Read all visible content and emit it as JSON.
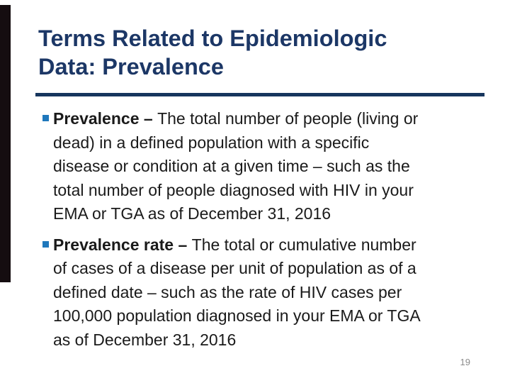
{
  "slide": {
    "title_line1": "Terms Related to Epidemiologic",
    "title_line2": "Data: Prevalence",
    "bullets": [
      {
        "bold": "Prevalence – ",
        "lines": [
          "The total number of people (living or",
          "dead) in a defined population with a specific",
          "disease or condition at a given time – such as the",
          "total number of people diagnosed with HIV in your",
          "EMA or TGA as of December 31, 2016"
        ]
      },
      {
        "bold": "Prevalence rate – ",
        "lines": [
          "The total or cumulative number",
          "of cases of a disease per unit of population as of a",
          "defined date – such as the rate of HIV cases per",
          "100,000 population diagnosed in your EMA or TGA",
          "as of December 31, 2016"
        ]
      }
    ],
    "page_number": "19",
    "colors": {
      "title": "#1c3766",
      "rule": "#17365d",
      "bullet_square": "#1f78bc",
      "body_text": "#1a1a1a",
      "left_bar": "#150d10",
      "page_number": "#8c8c8c",
      "background": "#ffffff"
    }
  }
}
